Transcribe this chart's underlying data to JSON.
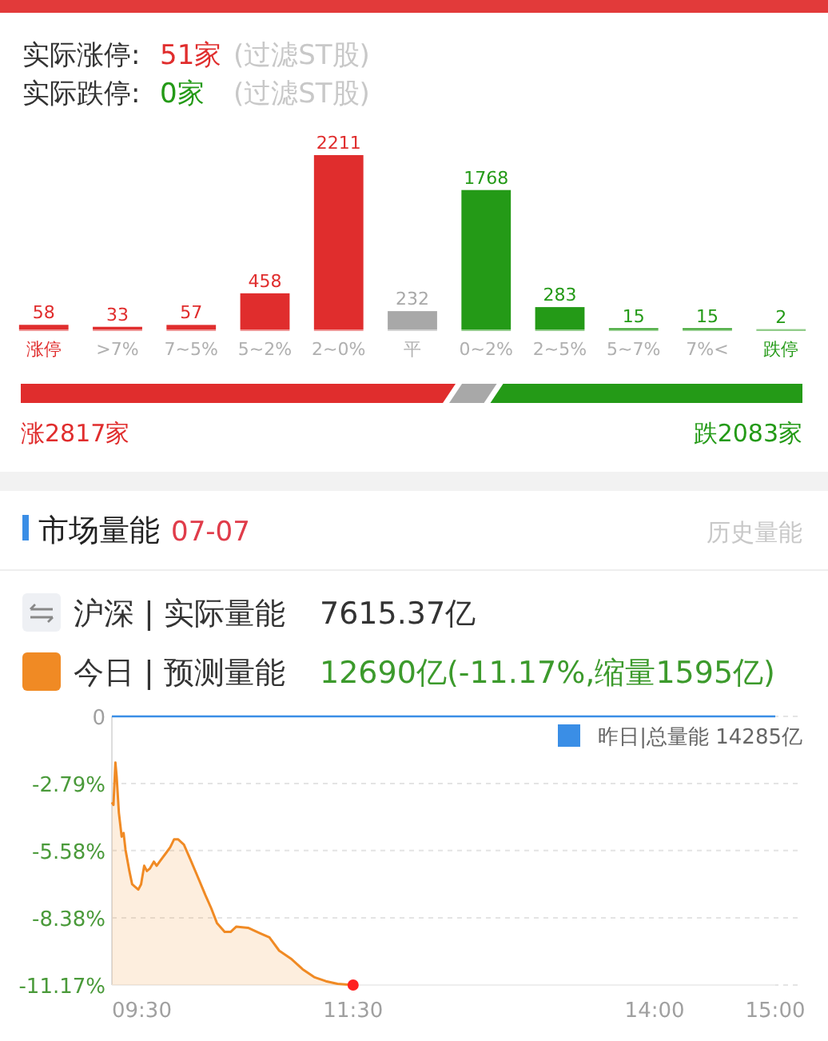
{
  "chart_data": [
    {
      "type": "bar",
      "categories": [
        "涨停",
        ">7%",
        "7~5%",
        "5~2%",
        "2~0%",
        "平",
        "0~2%",
        "2~5%",
        "5~7%",
        "7%<",
        "跌停"
      ],
      "values": [
        58,
        33,
        57,
        458,
        2211,
        232,
        1768,
        283,
        15,
        15,
        2
      ],
      "colors": [
        "#e02d2d",
        "#e02d2d",
        "#e02d2d",
        "#e02d2d",
        "#e02d2d",
        "#a8a8a8",
        "#249a17",
        "#249a17",
        "#249a17",
        "#249a17",
        "#249a17"
      ],
      "data_labels": true,
      "annotations": [
        "实际涨停:",
        "51家",
        "(过滤ST股)",
        "实际跌停:",
        "0家",
        "(过滤ST股)",
        "涨2817家",
        "跌2083家"
      ]
    },
    {
      "type": "line",
      "title": "市场量能",
      "subtitle": "07-07",
      "annotations": [
        "历史量能",
        "沪深 | 实际量能",
        "7615.37亿",
        "今日 | 预测量能",
        "12690亿(-11.17%,缩量1595亿)"
      ],
      "x": [
        9.5,
        9.513,
        9.529,
        9.539,
        9.558,
        9.581,
        9.597,
        9.613,
        9.645,
        9.668,
        9.694,
        9.719,
        9.742,
        9.768,
        9.79,
        9.816,
        9.848,
        9.871,
        9.903,
        9.952,
        9.984,
        10.016,
        10.048,
        10.097,
        10.145,
        10.21,
        10.274,
        10.323,
        10.371,
        10.435,
        10.484,
        10.532,
        10.629,
        10.726,
        10.806,
        10.887,
        10.984,
        11.081,
        11.177,
        11.274,
        11.371,
        11.5
      ],
      "series": [
        {
          "color": "#f08a24",
          "values": [
            -3.57,
            -3.68,
            -1.92,
            -2.47,
            -4.01,
            -5.0,
            -4.85,
            -5.55,
            -6.43,
            -6.98,
            -7.09,
            -7.2,
            -6.98,
            -6.21,
            -6.43,
            -6.32,
            -6.04,
            -6.21,
            -5.99,
            -5.66,
            -5.44,
            -5.11,
            -5.11,
            -5.33,
            -5.88,
            -6.65,
            -7.42,
            -7.97,
            -8.59,
            -8.96,
            -8.96,
            -8.74,
            -8.79,
            -9.01,
            -9.19,
            -9.74,
            -10.07,
            -10.51,
            -10.84,
            -11.01,
            -11.12,
            -11.17
          ]
        },
        {
          "type": "line",
          "name": "昨日|总量能 14285亿",
          "color": "#3a8ee6",
          "x": [
            9.5,
            15
          ],
          "values": [
            0,
            0
          ]
        },
        {
          "type": "scatter",
          "color": "#ff2020",
          "x": [
            11.5
          ],
          "values": [
            -11.17
          ],
          "marker": "circle"
        }
      ],
      "xlim": [
        9.5,
        15
      ],
      "xticks": [
        {
          "value": 9.5,
          "label": "09:30"
        },
        {
          "value": 11.5,
          "label": "11:30"
        },
        {
          "value": 14,
          "label": "14:00"
        },
        {
          "value": 15,
          "label": "15:00"
        }
      ],
      "ylim": [
        -11.17,
        0
      ],
      "yticks": [
        {
          "value": 0,
          "label": "0"
        },
        {
          "value": -2.79,
          "label": "-2.79%"
        },
        {
          "value": -5.58,
          "label": "-5.58%"
        },
        {
          "value": -8.38,
          "label": "-8.38%"
        },
        {
          "value": -11.17,
          "label": "-11.17%"
        }
      ],
      "grid": "y",
      "legend": "top right"
    }
  ]
}
